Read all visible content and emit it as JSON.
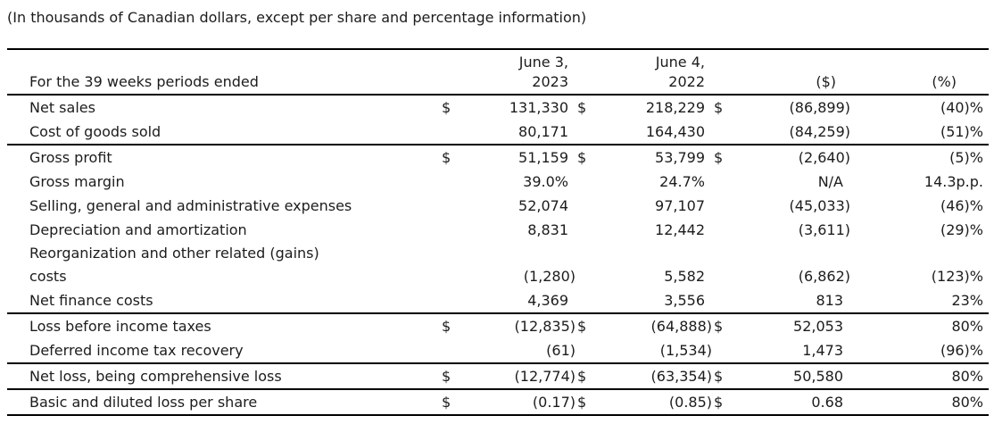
{
  "colors": {
    "background": "#ffffff",
    "text": "#1c1c1c",
    "rule_line": "#000000"
  },
  "caption": "(In thousands of Canadian dollars, except per share and percentage information)",
  "table": {
    "header": {
      "period_label": "For the 39 weeks periods ended",
      "date_2023_line1": "June 3,",
      "date_2023_line2": "2023",
      "date_2022_line1": "June 4,",
      "date_2022_line2": "2022",
      "change_dollar": "($)",
      "change_percent": "(%)"
    },
    "rows": [
      {
        "label": "Net sales",
        "d1": "$",
        "v2023": "131,330",
        "d2": "$",
        "v2022": "218,229",
        "d3": "$",
        "chg_d": "(86,899)",
        "chg_p": "(40)%",
        "rule": false
      },
      {
        "label": "Cost of goods sold",
        "d1": "",
        "v2023": "80,171",
        "d2": "",
        "v2022": "164,430",
        "d3": "",
        "chg_d": "(84,259)",
        "chg_p": "(51)%",
        "rule": true
      },
      {
        "label": "Gross profit",
        "d1": "$",
        "v2023": "51,159",
        "d2": "$",
        "v2022": "53,799",
        "d3": "$",
        "chg_d": "(2,640)",
        "chg_p": "(5)%",
        "rule": false
      },
      {
        "label": "Gross margin",
        "d1": "",
        "v2023": "39.0%",
        "d2": "",
        "v2022": "24.7%",
        "d3": "",
        "chg_d": "N/A",
        "chg_p": "14.3p.p.",
        "rule": false
      },
      {
        "label": "Selling, general and administrative expenses",
        "d1": "",
        "v2023": "52,074",
        "d2": "",
        "v2022": "97,107",
        "d3": "",
        "chg_d": "(45,033)",
        "chg_p": "(46)%",
        "rule": false
      },
      {
        "label": "Depreciation and amortization",
        "d1": "",
        "v2023": "8,831",
        "d2": "",
        "v2022": "12,442",
        "d3": "",
        "chg_d": "(3,611)",
        "chg_p": "(29)%",
        "rule": false
      },
      {
        "label": "Reorganization and other related (gains)\ncosts",
        "d1": "",
        "v2023": "(1,280)",
        "d2": "",
        "v2022": "5,582",
        "d3": "",
        "chg_d": "(6,862)",
        "chg_p": "(123)%",
        "rule": false
      },
      {
        "label": "Net finance costs",
        "d1": "",
        "v2023": "4,369",
        "d2": "",
        "v2022": "3,556",
        "d3": "",
        "chg_d": "813",
        "chg_p": "23%",
        "rule": true
      },
      {
        "label": "Loss before income taxes",
        "d1": "$",
        "v2023": "(12,835)",
        "d2": "$",
        "v2022": "(64,888)",
        "d3": "$",
        "chg_d": "52,053",
        "chg_p": "80%",
        "rule": false
      },
      {
        "label": "Deferred income tax recovery",
        "d1": "",
        "v2023": "(61)",
        "d2": "",
        "v2022": "(1,534)",
        "d3": "",
        "chg_d": "1,473",
        "chg_p": "(96)%",
        "rule": true
      },
      {
        "label": "Net loss, being comprehensive loss",
        "d1": "$",
        "v2023": "(12,774)",
        "d2": "$",
        "v2022": "(63,354)",
        "d3": "$",
        "chg_d": "50,580",
        "chg_p": "80%",
        "rule": true
      },
      {
        "label": "Basic and diluted loss per share",
        "d1": "$",
        "v2023": "(0.17)",
        "d2": "$",
        "v2022": "(0.85)",
        "d3": "$",
        "chg_d": "0.68",
        "chg_p": "80%",
        "rule": true
      }
    ]
  }
}
